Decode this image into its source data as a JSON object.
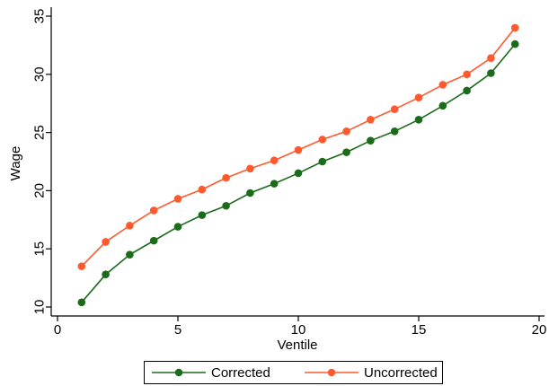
{
  "colors": {
    "corrected": "#1a6b1a",
    "uncorrected": "#ff5a2e",
    "axis": "#000000",
    "background": "#ffffff"
  },
  "chart_data": {
    "type": "line",
    "title": "",
    "xlabel": "Ventile",
    "ylabel": "Wage",
    "xlim": [
      0,
      20
    ],
    "ylim": [
      10,
      35
    ],
    "xticks": [
      0,
      5,
      10,
      15,
      20
    ],
    "yticks": [
      10,
      15,
      20,
      25,
      30,
      35
    ],
    "x": [
      1,
      2,
      3,
      4,
      5,
      6,
      7,
      8,
      9,
      10,
      11,
      12,
      13,
      14,
      15,
      16,
      17,
      18,
      19
    ],
    "grid": false,
    "legend_position": "bottom",
    "series": [
      {
        "name": "Corrected",
        "color": "#1a6b1a",
        "values": [
          10.4,
          12.8,
          14.5,
          15.7,
          16.9,
          17.9,
          18.7,
          19.8,
          20.6,
          21.5,
          22.5,
          23.3,
          24.3,
          25.1,
          26.1,
          27.3,
          28.6,
          30.1,
          32.6
        ]
      },
      {
        "name": "Uncorrected",
        "color": "#ff5a2e",
        "values": [
          13.5,
          15.6,
          17.0,
          18.3,
          19.3,
          20.1,
          21.1,
          21.9,
          22.6,
          23.5,
          24.4,
          25.1,
          26.1,
          27.0,
          28.0,
          29.1,
          30.0,
          31.4,
          34.0
        ]
      }
    ]
  }
}
